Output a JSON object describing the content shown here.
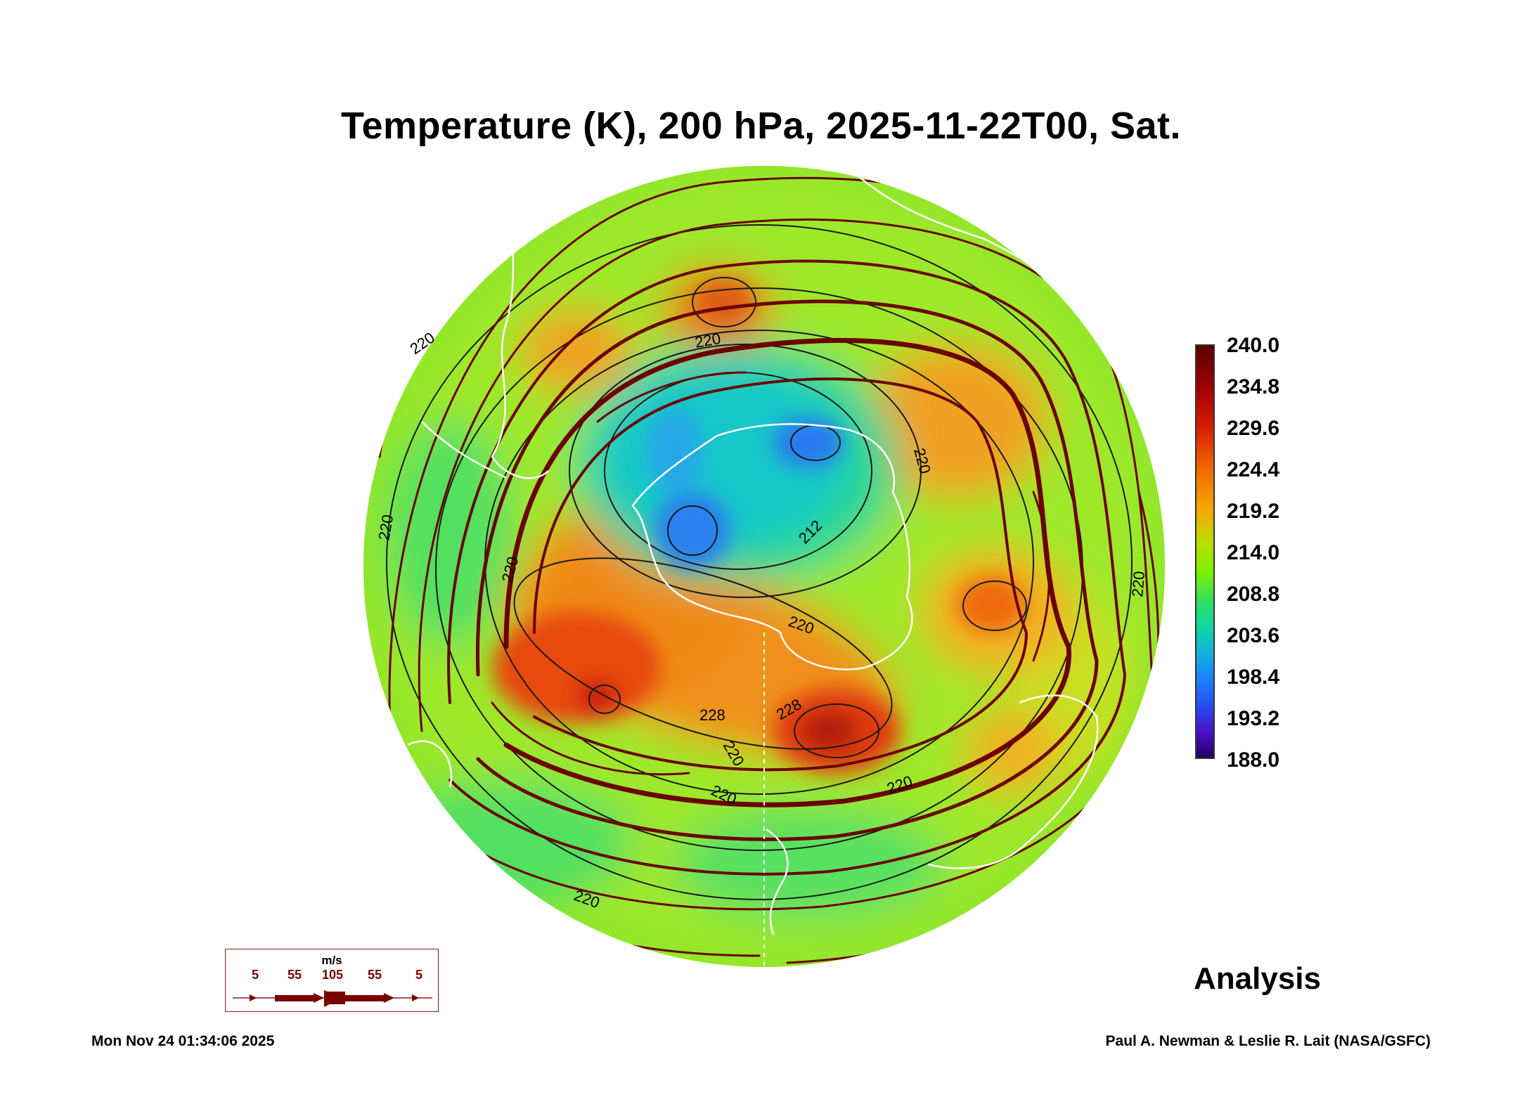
{
  "title": "Temperature (K), 200 hPa, 2025-11-22T00, Sat.",
  "colorbar": {
    "labels": [
      "240.0",
      "234.8",
      "229.6",
      "224.4",
      "219.2",
      "214.0",
      "208.8",
      "203.6",
      "198.4",
      "193.2",
      "188.0"
    ],
    "min": 188.0,
    "max": 240.0
  },
  "contour_labels": [
    "220",
    "220",
    "220",
    "212",
    "220",
    "228",
    "228",
    "220",
    "220",
    "220",
    "220",
    "220",
    "220",
    "220"
  ],
  "vector_legend": {
    "unit": "m/s",
    "speeds": [
      "5",
      "55",
      "105",
      "55",
      "5"
    ]
  },
  "analysis_label": "Analysis",
  "timestamp": "Mon Nov 24 01:34:06 2025",
  "credit": "Paul A. Newman & Leslie R. Lait (NASA/GSFC)",
  "colors": {
    "streamline": "#6b0000",
    "coastline": "#ffffff",
    "contour": "#1a1a1a"
  }
}
